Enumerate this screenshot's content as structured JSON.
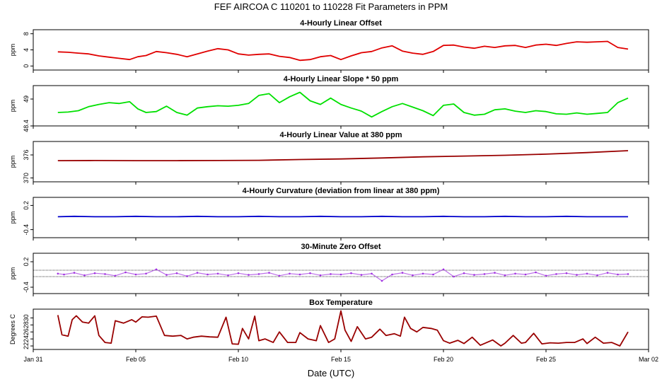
{
  "title": "FEF   AIRCOA C   110201 to 110228   Fit Parameters in PPM",
  "xlabel": "Date (UTC)",
  "x_axis": {
    "range": [
      0,
      30
    ],
    "ticks": [
      {
        "value": 0,
        "label": "Jan 31"
      },
      {
        "value": 5,
        "label": "Feb 05"
      },
      {
        "value": 10,
        "label": "Feb 10"
      },
      {
        "value": 15,
        "label": "Feb 15"
      },
      {
        "value": 20,
        "label": "Feb 20"
      },
      {
        "value": 25,
        "label": "Feb 25"
      },
      {
        "value": 30,
        "label": "Mar 02"
      }
    ]
  },
  "chart_data": [
    {
      "type": "line",
      "title": "4-Hourly Linear Offset",
      "ylabel": "ppm",
      "ylim": [
        -1,
        9
      ],
      "yticks": [
        0,
        4,
        8
      ],
      "color": "#e00000",
      "series": [
        {
          "name": "offset",
          "x": [
            1.2,
            1.7,
            2.2,
            2.7,
            3.2,
            3.7,
            4.2,
            4.7,
            5.1,
            5.5,
            6.0,
            6.5,
            7.0,
            7.5,
            8.0,
            8.5,
            9.0,
            9.5,
            10.0,
            10.5,
            11.0,
            11.5,
            12.0,
            12.5,
            13.0,
            13.5,
            14.0,
            14.5,
            15.0,
            15.5,
            16.0,
            16.5,
            17.0,
            17.5,
            18.0,
            18.5,
            19.0,
            19.5,
            20.0,
            20.5,
            21.0,
            21.5,
            22.0,
            22.5,
            23.0,
            23.5,
            24.0,
            24.5,
            25.0,
            25.5,
            26.0,
            26.5,
            27.0,
            27.5,
            28.0,
            28.5,
            29.0
          ],
          "values": [
            3.5,
            3.4,
            3.2,
            3.0,
            2.5,
            2.2,
            1.9,
            1.6,
            2.3,
            2.6,
            3.6,
            3.3,
            2.9,
            2.3,
            3.0,
            3.7,
            4.3,
            4.0,
            3.0,
            2.7,
            2.9,
            3.0,
            2.4,
            2.1,
            1.4,
            1.6,
            2.3,
            2.6,
            1.6,
            2.5,
            3.3,
            3.6,
            4.5,
            5.0,
            3.7,
            3.2,
            2.9,
            3.6,
            5.1,
            5.2,
            4.7,
            4.4,
            4.9,
            4.6,
            5.0,
            5.1,
            4.6,
            5.2,
            5.4,
            5.1,
            5.6,
            6.0,
            5.9,
            6.0,
            6.1,
            4.6,
            4.2
          ]
        }
      ]
    },
    {
      "type": "line",
      "title": "4-Hourly Linear Slope * 50 ppm",
      "ylabel": "ppm",
      "ylim": [
        48.4,
        49.3
      ],
      "yticks": [
        48.4,
        49.0
      ],
      "color": "#00e000",
      "series": [
        {
          "name": "slope",
          "x": [
            1.2,
            1.7,
            2.2,
            2.7,
            3.2,
            3.7,
            4.2,
            4.7,
            5.1,
            5.5,
            6.0,
            6.5,
            7.0,
            7.5,
            8.0,
            8.5,
            9.0,
            9.5,
            10.0,
            10.5,
            11.0,
            11.5,
            12.0,
            12.5,
            13.0,
            13.5,
            14.0,
            14.5,
            15.0,
            15.5,
            16.0,
            16.5,
            17.0,
            17.5,
            18.0,
            18.5,
            19.0,
            19.5,
            20.0,
            20.5,
            21.0,
            21.5,
            22.0,
            22.5,
            23.0,
            23.5,
            24.0,
            24.5,
            25.0,
            25.5,
            26.0,
            26.5,
            27.0,
            27.5,
            28.0,
            28.5,
            29.0
          ],
          "values": [
            48.7,
            48.71,
            48.74,
            48.83,
            48.88,
            48.92,
            48.9,
            48.94,
            48.78,
            48.7,
            48.72,
            48.84,
            48.7,
            48.64,
            48.8,
            48.83,
            48.85,
            48.84,
            48.86,
            48.9,
            49.08,
            49.12,
            48.92,
            49.05,
            49.15,
            48.96,
            48.88,
            49.02,
            48.88,
            48.8,
            48.73,
            48.6,
            48.72,
            48.83,
            48.9,
            48.82,
            48.74,
            48.63,
            48.86,
            48.89,
            48.7,
            48.64,
            48.66,
            48.76,
            48.78,
            48.73,
            48.7,
            48.74,
            48.72,
            48.67,
            48.66,
            48.69,
            48.66,
            48.68,
            48.7,
            48.92,
            49.02
          ]
        }
      ]
    },
    {
      "type": "line",
      "title": "4-Hourly Linear Value at 380 ppm",
      "ylabel": "ppm",
      "ylim": [
        369,
        379.5
      ],
      "yticks": [
        370,
        376
      ],
      "color": "#990000",
      "series": [
        {
          "name": "value",
          "x": [
            1.2,
            3.0,
            5.0,
            7.0,
            9.0,
            11.0,
            13.0,
            15.0,
            17.0,
            19.0,
            21.0,
            23.0,
            25.0,
            27.0,
            29.0
          ],
          "values": [
            374.5,
            374.55,
            374.5,
            374.5,
            374.55,
            374.6,
            374.8,
            374.95,
            375.2,
            375.5,
            375.7,
            375.9,
            376.2,
            376.6,
            377.1
          ]
        }
      ]
    },
    {
      "type": "line",
      "title": "4-Hourly Curvature (deviation from linear at 380 ppm)",
      "ylabel": "ppm",
      "ylim": [
        -0.6,
        0.4
      ],
      "yticks": [
        -0.4,
        0.2
      ],
      "color": "#0000cc",
      "series": [
        {
          "name": "curvature",
          "x": [
            1.2,
            2.0,
            3.0,
            4.0,
            5.0,
            6.0,
            7.0,
            8.0,
            9.0,
            10.0,
            11.0,
            12.0,
            13.0,
            14.0,
            15.0,
            16.0,
            17.0,
            18.0,
            19.0,
            20.0,
            21.0,
            22.0,
            23.0,
            24.0,
            25.0,
            26.0,
            27.0,
            28.0,
            29.0
          ],
          "values": [
            -0.08,
            -0.07,
            -0.08,
            -0.08,
            -0.07,
            -0.08,
            -0.08,
            -0.07,
            -0.08,
            -0.08,
            -0.07,
            -0.08,
            -0.08,
            -0.07,
            -0.08,
            -0.08,
            -0.07,
            -0.08,
            -0.08,
            -0.07,
            -0.08,
            -0.08,
            -0.07,
            -0.08,
            -0.08,
            -0.07,
            -0.08,
            -0.08,
            -0.08
          ]
        }
      ]
    },
    {
      "type": "scatter",
      "title": "30-Minute Zero Offset",
      "ylabel": "ppm",
      "ylim": [
        -0.55,
        0.4
      ],
      "yticks": [
        -0.4,
        0.2
      ],
      "color": "#a030e0",
      "reference_lines": [
        0.0,
        -0.15
      ],
      "series": [
        {
          "name": "zero offset",
          "x": [
            1.2,
            1.5,
            2.0,
            2.5,
            3.0,
            3.5,
            4.0,
            4.5,
            5.0,
            5.5,
            6.0,
            6.5,
            7.0,
            7.5,
            8.0,
            8.5,
            9.0,
            9.5,
            10.0,
            10.5,
            11.0,
            11.5,
            12.0,
            12.5,
            13.0,
            13.5,
            14.0,
            14.5,
            15.0,
            15.5,
            16.0,
            16.5,
            17.0,
            17.5,
            18.0,
            18.5,
            19.0,
            19.5,
            20.0,
            20.5,
            21.0,
            21.5,
            22.0,
            22.5,
            23.0,
            23.5,
            24.0,
            24.5,
            25.0,
            25.5,
            26.0,
            26.5,
            27.0,
            27.5,
            28.0,
            28.5,
            29.0
          ],
          "values": [
            -0.08,
            -0.1,
            -0.06,
            -0.12,
            -0.07,
            -0.09,
            -0.13,
            -0.05,
            -0.1,
            -0.08,
            0.02,
            -0.11,
            -0.07,
            -0.14,
            -0.06,
            -0.1,
            -0.08,
            -0.12,
            -0.07,
            -0.11,
            -0.09,
            -0.06,
            -0.13,
            -0.08,
            -0.1,
            -0.07,
            -0.12,
            -0.09,
            -0.1,
            -0.07,
            -0.11,
            -0.08,
            -0.25,
            -0.1,
            -0.06,
            -0.12,
            -0.08,
            -0.1,
            0.02,
            -0.15,
            -0.07,
            -0.11,
            -0.09,
            -0.06,
            -0.12,
            -0.08,
            -0.1,
            -0.05,
            -0.13,
            -0.09,
            -0.07,
            -0.11,
            -0.08,
            -0.12,
            -0.06,
            -0.1,
            -0.09
          ]
        }
      ]
    },
    {
      "type": "line",
      "title": "Box Temperature",
      "ylabel": "Degrees C",
      "ylim": [
        21,
        32.5
      ],
      "yticks": [
        22,
        24,
        26,
        28,
        30
      ],
      "color": "#990000",
      "series": [
        {
          "name": "temperature",
          "x": [
            1.2,
            1.4,
            1.7,
            1.9,
            2.1,
            2.4,
            2.7,
            3.0,
            3.2,
            3.5,
            3.8,
            4.0,
            4.4,
            4.8,
            5.0,
            5.3,
            5.6,
            6.0,
            6.4,
            6.8,
            7.2,
            7.5,
            7.8,
            8.2,
            8.6,
            9.0,
            9.4,
            9.7,
            10.0,
            10.2,
            10.5,
            10.8,
            11.0,
            11.3,
            11.7,
            12.0,
            12.4,
            12.8,
            13.0,
            13.4,
            13.8,
            14.0,
            14.4,
            14.7,
            15.0,
            15.2,
            15.5,
            15.8,
            16.2,
            16.5,
            16.9,
            17.2,
            17.6,
            17.9,
            18.1,
            18.4,
            18.7,
            19.0,
            19.4,
            19.7,
            20.0,
            20.3,
            20.7,
            21.0,
            21.4,
            21.8,
            22.0,
            22.4,
            22.8,
            23.0,
            23.4,
            23.8,
            24.0,
            24.4,
            24.8,
            25.2,
            25.6,
            26.0,
            26.4,
            26.8,
            27.0,
            27.4,
            27.8,
            28.2,
            28.6,
            29.0
          ],
          "values": [
            30.8,
            25.2,
            24.8,
            29.5,
            30.6,
            28.8,
            28.5,
            30.6,
            25.0,
            23.0,
            22.8,
            29.2,
            28.5,
            29.5,
            28.8,
            30.3,
            30.2,
            30.5,
            25.0,
            24.8,
            25.0,
            24.0,
            24.5,
            24.8,
            24.6,
            24.5,
            30.2,
            22.6,
            22.5,
            27.0,
            24.0,
            30.5,
            23.5,
            24.0,
            23.0,
            26.0,
            23.0,
            23.0,
            25.8,
            24.0,
            23.5,
            27.8,
            23.0,
            24.0,
            32.0,
            26.5,
            23.3,
            27.5,
            24.0,
            24.5,
            26.8,
            25.0,
            25.5,
            24.8,
            30.2,
            27.0,
            26.0,
            27.3,
            27.0,
            26.5,
            23.5,
            22.8,
            23.6,
            22.7,
            24.5,
            22.2,
            22.7,
            23.7,
            22.0,
            22.8,
            25.0,
            22.8,
            23.0,
            25.6,
            22.6,
            22.9,
            22.8,
            23.0,
            23.0,
            24.0,
            22.7,
            24.5,
            22.8,
            23.0,
            22.0,
            26.0
          ]
        }
      ]
    }
  ]
}
